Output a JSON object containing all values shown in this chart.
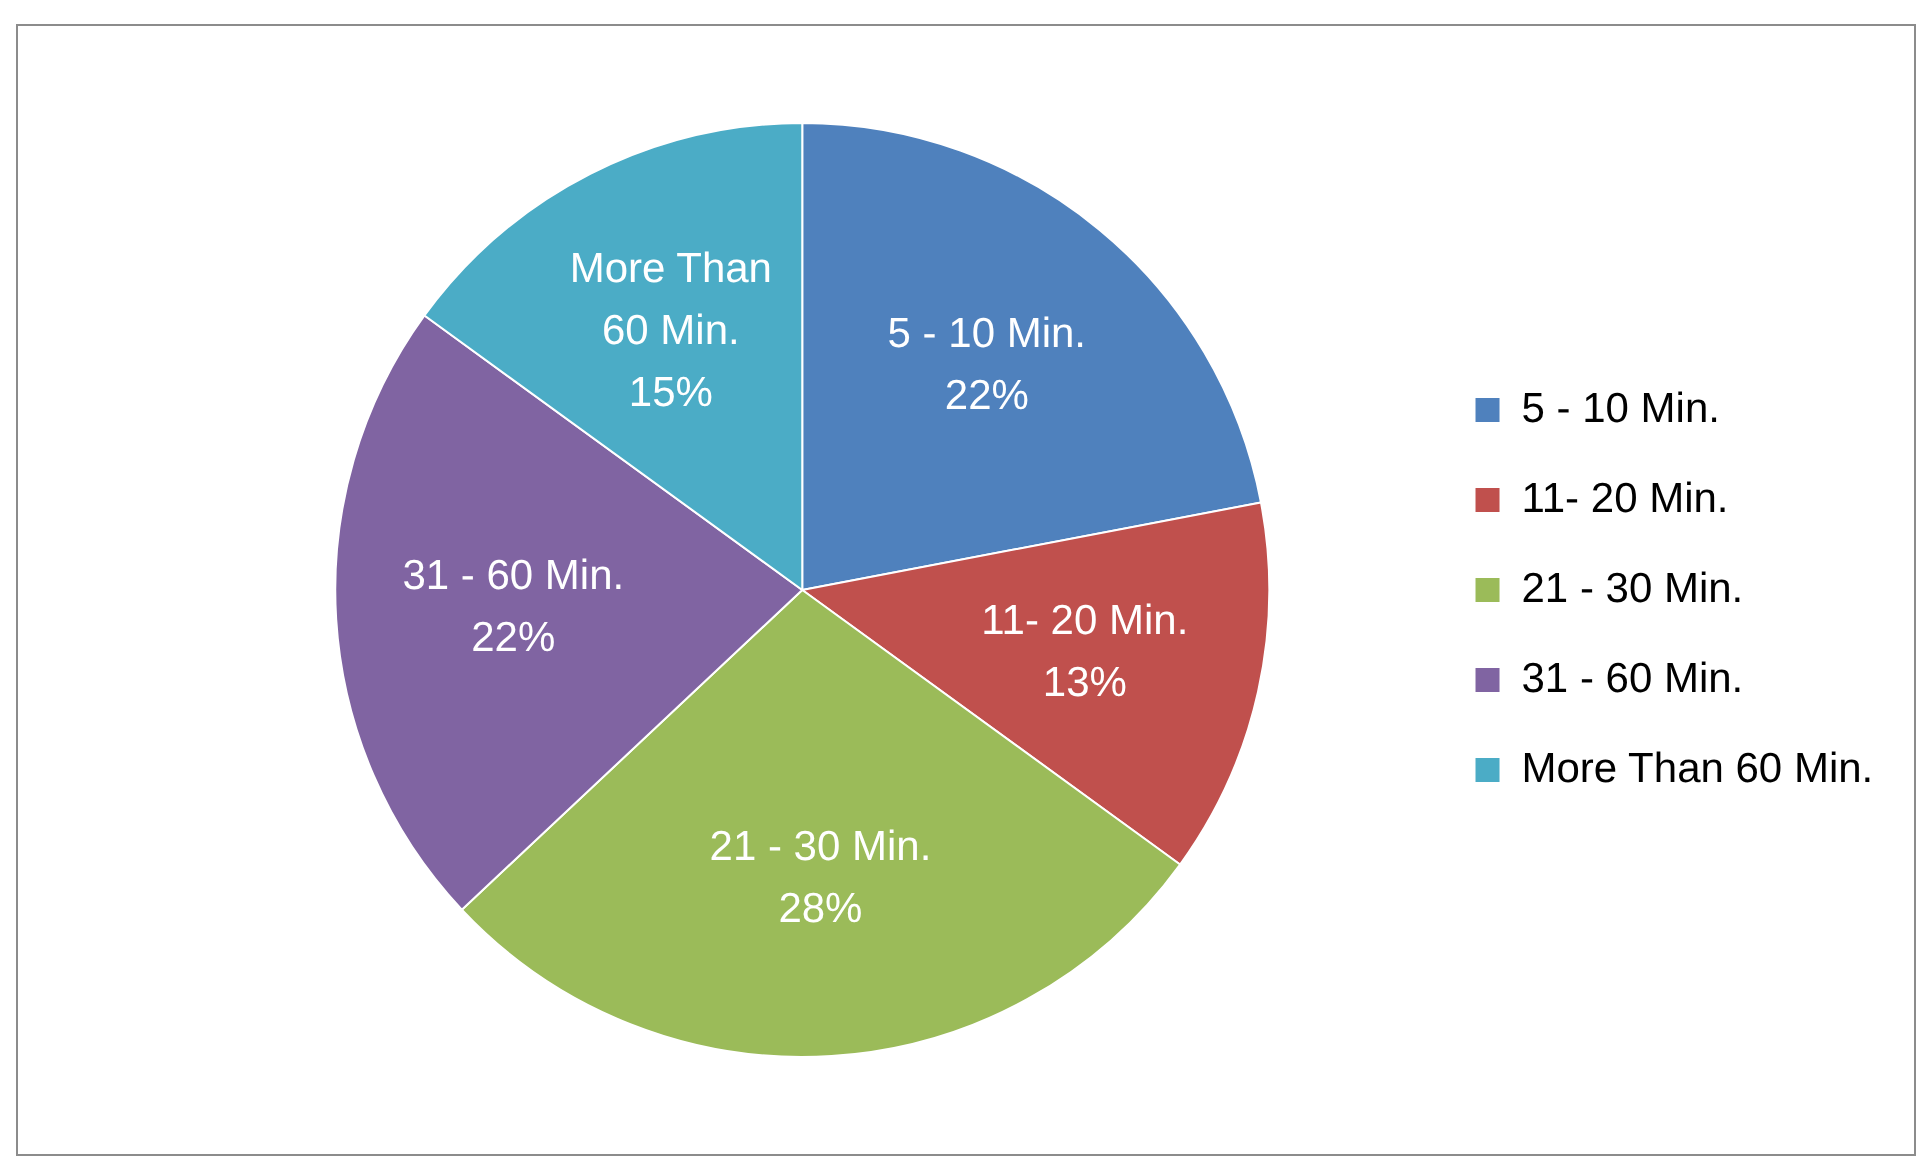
{
  "chart_data": {
    "type": "pie",
    "categories": [
      "5 - 10 Min.",
      "11- 20 Min.",
      "21 - 30 Min.",
      "31 - 60 Min.",
      "More Than 60 Min."
    ],
    "values": [
      22,
      13,
      28,
      22,
      15
    ],
    "value_labels": [
      "22%",
      "13%",
      "28%",
      "22%",
      "15%"
    ],
    "colors": [
      "#4f81bd",
      "#c0504d",
      "#9bbb59",
      "#8064a2",
      "#4bacc6"
    ],
    "legend": "right"
  }
}
